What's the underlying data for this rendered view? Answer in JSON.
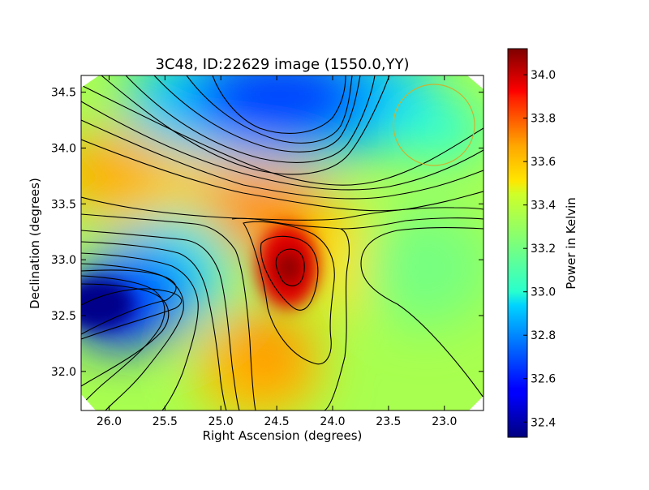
{
  "chart_data": {
    "type": "heatmap",
    "title": "3C48, ID:22629 image (1550.0,YY)",
    "xlabel": "Right Ascension (degrees)",
    "ylabel": "Declination (degrees)",
    "colorbar_label": "Power in Kelvin",
    "x_range": [
      26.25,
      22.65
    ],
    "y_range": [
      31.65,
      34.65
    ],
    "x_ticks": [
      "26.0",
      "25.5",
      "25.0",
      "24.5",
      "24.0",
      "23.5",
      "23.0"
    ],
    "y_ticks": [
      "32.0",
      "32.5",
      "33.0",
      "33.5",
      "34.0",
      "34.5"
    ],
    "colorbar_range": [
      32.33,
      34.12
    ],
    "colorbar_ticks": [
      "32.4",
      "32.6",
      "32.8",
      "33.0",
      "33.2",
      "33.4",
      "33.6",
      "33.8",
      "34.0"
    ],
    "colormap": "jet",
    "contours": "black lines",
    "features": [
      {
        "kind": "maximum",
        "ra": 24.35,
        "dec": 32.95,
        "value": 34.1
      },
      {
        "kind": "minimum",
        "ra": 26.05,
        "dec": 32.6,
        "value": 32.35
      },
      {
        "kind": "minimum",
        "ra": 24.2,
        "dec": 34.4,
        "value": 32.6
      }
    ],
    "beam_circle": {
      "ra": 23.05,
      "dec": 34.2,
      "color": "#c8b432"
    }
  }
}
